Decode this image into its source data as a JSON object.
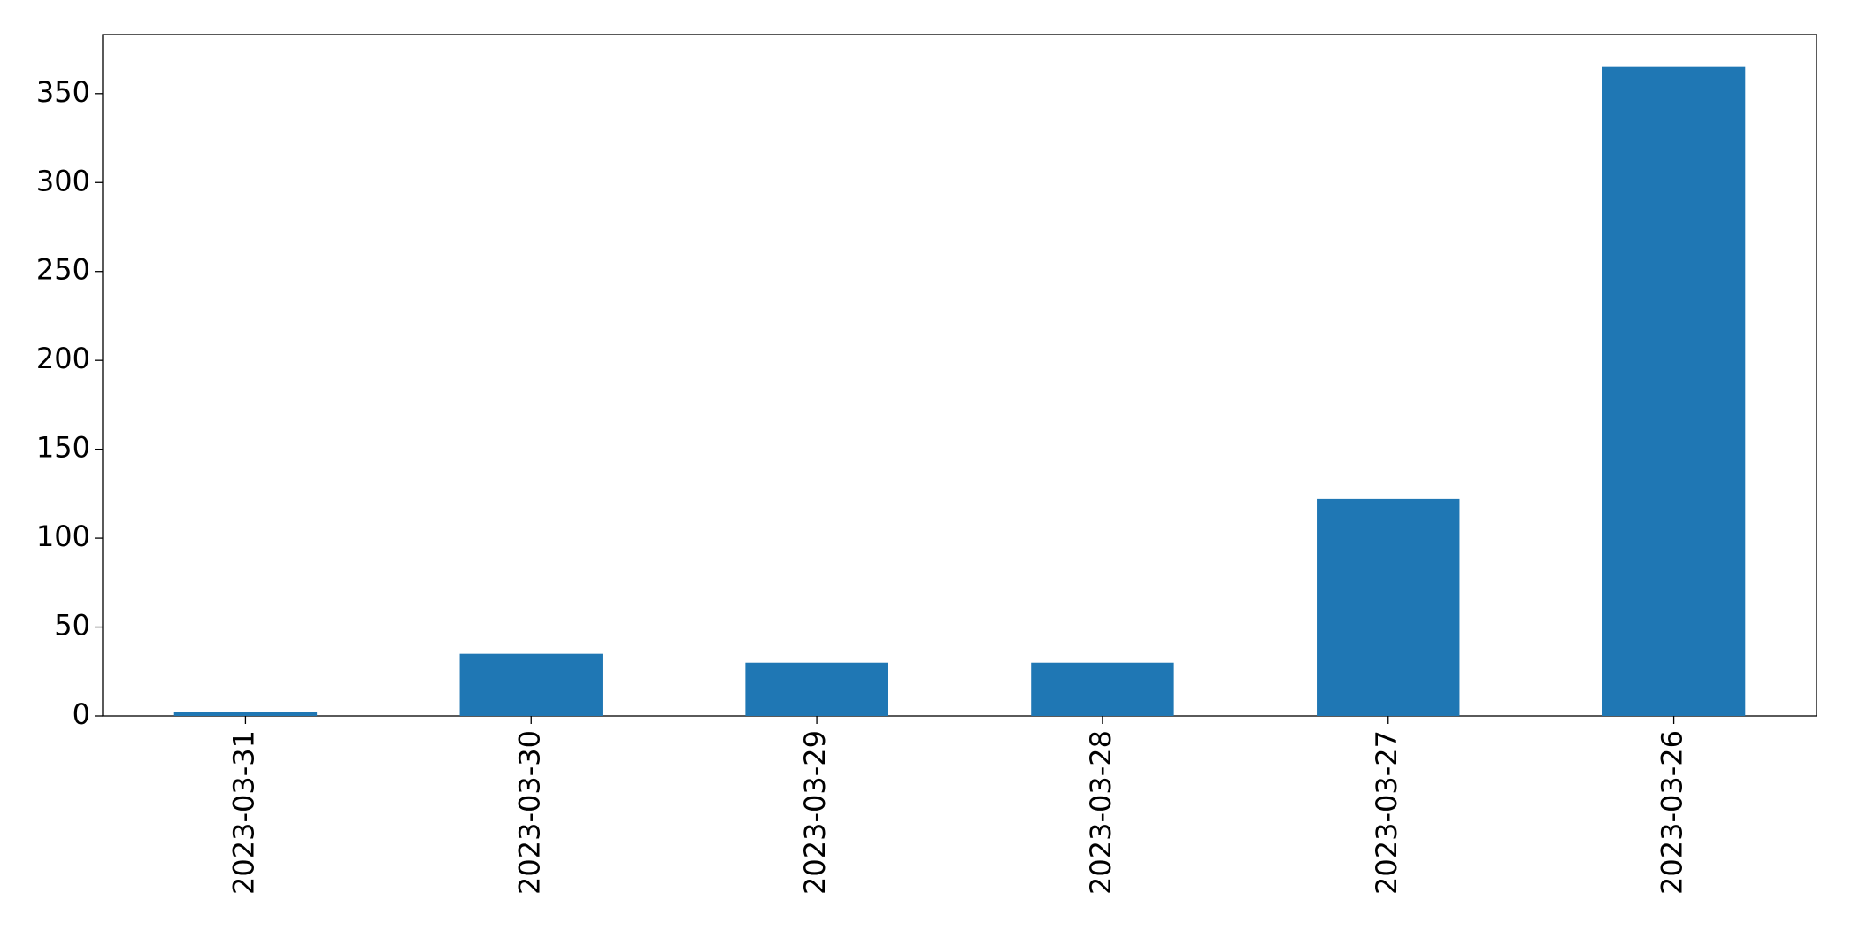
{
  "chart_data": {
    "type": "bar",
    "categories": [
      "2023-03-31",
      "2023-03-30",
      "2023-03-29",
      "2023-03-28",
      "2023-03-27",
      "2023-03-26"
    ],
    "values": [
      2,
      35,
      30,
      30,
      122,
      365
    ],
    "color": "#1f77b4",
    "ylim": [
      0,
      383.25
    ],
    "yticks": [
      0,
      50,
      100,
      150,
      200,
      250,
      300,
      350
    ],
    "grid": false
  }
}
